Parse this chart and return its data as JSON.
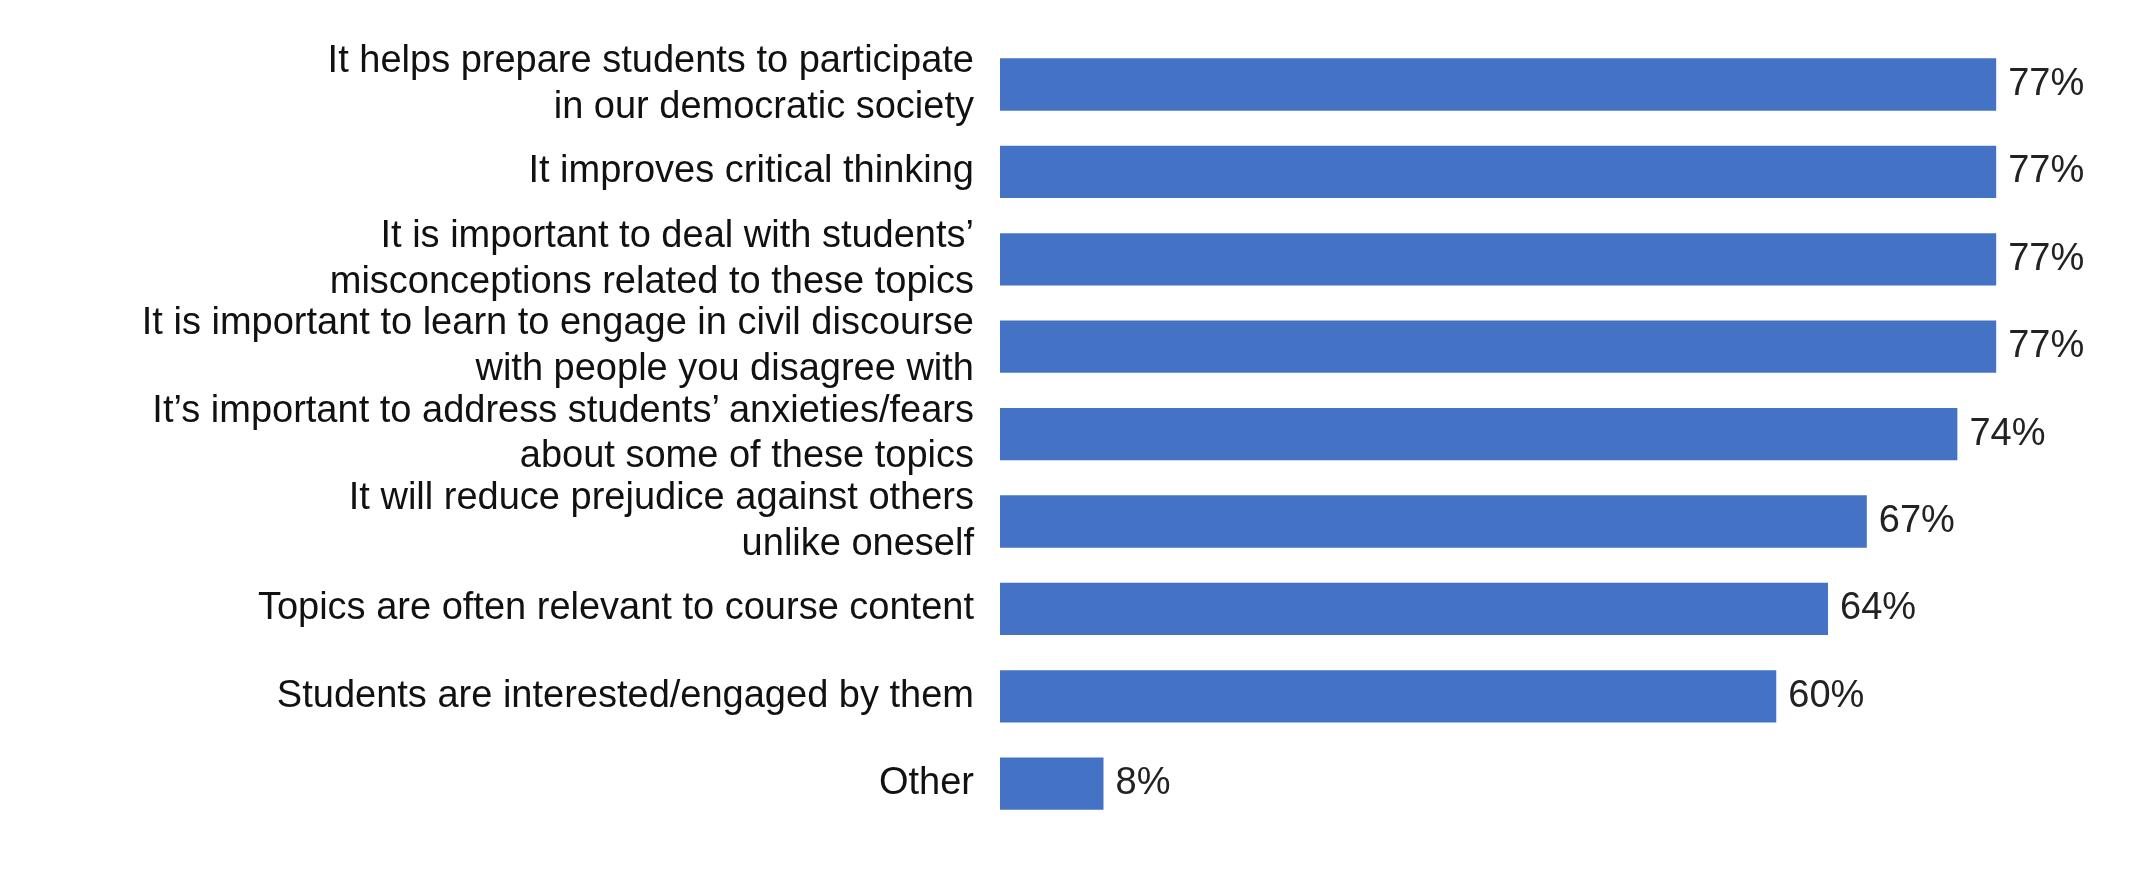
{
  "chart_data": {
    "type": "bar",
    "orientation": "horizontal",
    "color": "#4472c4",
    "categories": [
      "It helps prepare students to participate\nin our democratic society",
      "It improves critical thinking",
      "It is important to deal with students’\nmisconceptions related to these topics",
      "It is important to learn to engage in civil discourse\nwith people you disagree with",
      "It’s important to address students’ anxieties/fears\nabout some of these topics",
      "It will reduce prejudice against others\nunlike oneself",
      "Topics are often relevant to course content",
      "Students are interested/engaged by them",
      "Other"
    ],
    "values": [
      77,
      77,
      77,
      77,
      74,
      67,
      64,
      60,
      8
    ],
    "value_labels": [
      "77%",
      "77%",
      "77%",
      "77%",
      "74%",
      "67%",
      "64%",
      "60%",
      "8%"
    ],
    "legend": false
  }
}
